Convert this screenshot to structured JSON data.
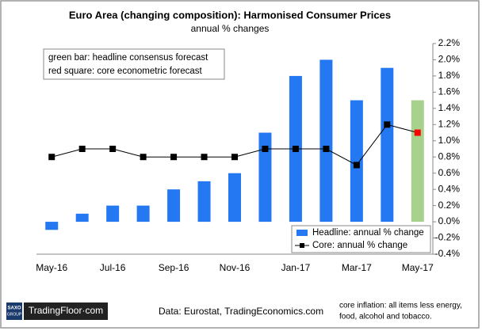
{
  "chart_data": {
    "type": "bar_line",
    "title": "Euro Area (changing composition): Harmonised Consumer Prices",
    "subtitle": "annual  % changes",
    "annotations": [
      "green bar: headline consensus forecast",
      "red square: core econometric forecast"
    ],
    "source": "Data: Eurostat,  TradingEconomics.com",
    "footnote": [
      "core inflation: all items less energy,",
      "food, alcohol and tobacco."
    ],
    "logo": [
      "SAXO",
      "GROUP",
      "TradingFloor·com"
    ],
    "categories": [
      "May-16",
      null,
      "Jul-16",
      null,
      "Sep-16",
      null,
      "Nov-16",
      null,
      "Jan-17",
      null,
      "Mar-17",
      null,
      "May-17"
    ],
    "series": [
      {
        "name": "Headline: annual % change",
        "type": "bar",
        "color": "#2479f2",
        "colors": [
          "#2479f2",
          "#2479f2",
          "#2479f2",
          "#2479f2",
          "#2479f2",
          "#2479f2",
          "#2479f2",
          "#2479f2",
          "#2479f2",
          "#2479f2",
          "#2479f2",
          "#2479f2",
          "#a9d18e"
        ],
        "values": [
          -0.1,
          0.1,
          0.2,
          0.2,
          0.4,
          0.5,
          0.6,
          1.1,
          1.8,
          2.0,
          1.5,
          1.9,
          1.5
        ]
      },
      {
        "name": "Core: annual % change",
        "type": "line",
        "color": "#000000",
        "colors": [
          "#000000",
          "#000000",
          "#000000",
          "#000000",
          "#000000",
          "#000000",
          "#000000",
          "#000000",
          "#000000",
          "#000000",
          "#000000",
          "#000000",
          "#ff0000"
        ],
        "values": [
          0.8,
          0.9,
          0.9,
          0.8,
          0.8,
          0.8,
          0.8,
          0.9,
          0.9,
          0.9,
          0.7,
          1.2,
          1.1
        ]
      }
    ],
    "ylim": [
      -0.4,
      2.2
    ],
    "yticks": [
      {
        "value": -0.4,
        "label": "-0.4%"
      },
      {
        "value": -0.2,
        "label": "-0.2%"
      },
      {
        "value": 0,
        "label": "0.0%"
      },
      {
        "value": 0.2,
        "label": "0.2%"
      },
      {
        "value": 0.4,
        "label": "0.4%"
      },
      {
        "value": 0.6,
        "label": "0.6%"
      },
      {
        "value": 0.8,
        "label": "0.8%"
      },
      {
        "value": 1.0,
        "label": "1.0%"
      },
      {
        "value": 1.2,
        "label": "1.2%"
      },
      {
        "value": 1.4,
        "label": "1.4%"
      },
      {
        "value": 1.6,
        "label": "1.6%"
      },
      {
        "value": 1.8,
        "label": "1.8%"
      },
      {
        "value": 2.0,
        "label": "2.0%"
      },
      {
        "value": 2.2,
        "label": "2.2%"
      }
    ],
    "legend": "bottom-right"
  }
}
